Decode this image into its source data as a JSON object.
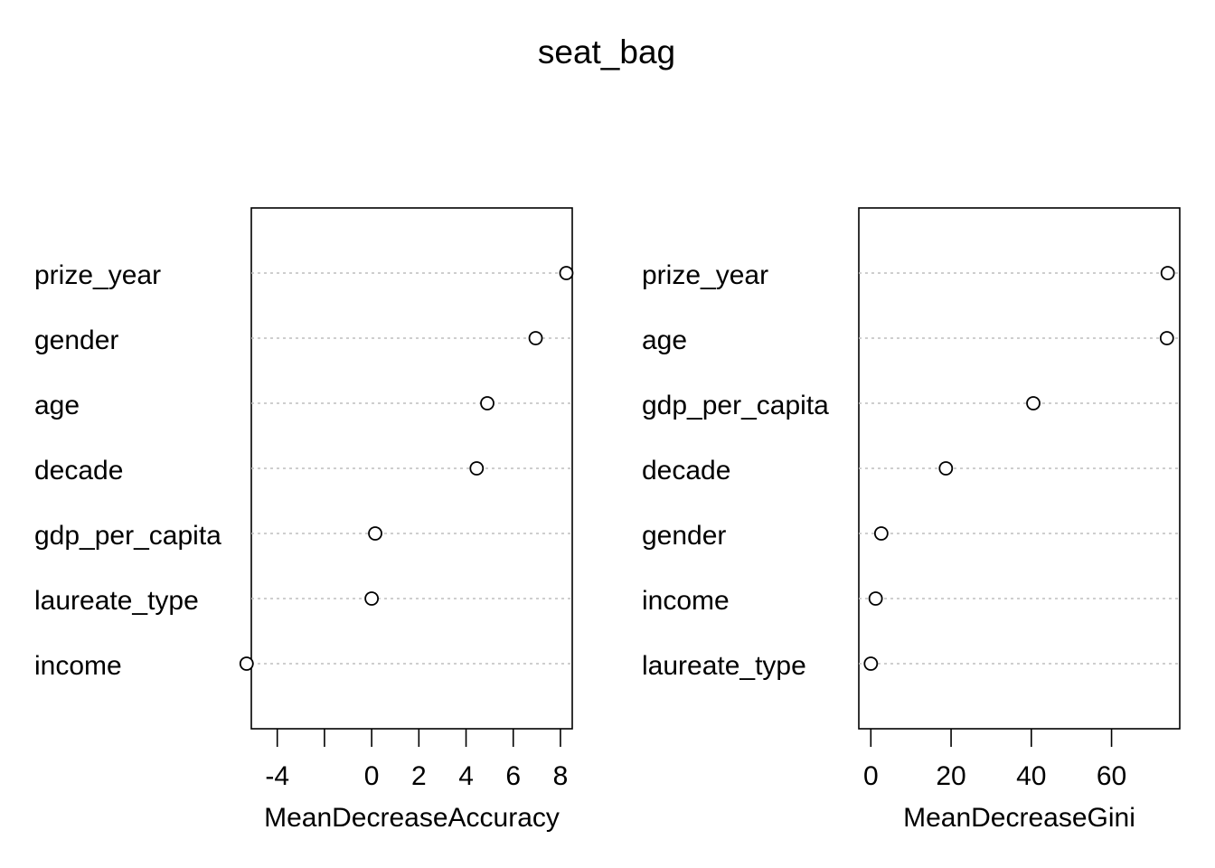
{
  "title": "seat_bag",
  "colors": {
    "frame": "#000000",
    "gridline": "#bebebe",
    "point_fill": "#ffffff",
    "point_stroke": "#000000"
  },
  "chart_data": [
    {
      "type": "scatter",
      "style": "dotchart",
      "xlabel": "MeanDecreaseAccuracy",
      "xlim": [
        -5.1,
        8.5
      ],
      "xticks": [
        -4,
        -2,
        0,
        2,
        4,
        6,
        8
      ],
      "xtick_labels": [
        "-4",
        "",
        "0",
        "2",
        "4",
        "6",
        "8"
      ],
      "grid": "horizontal-dotted",
      "categories": [
        "prize_year",
        "gender",
        "age",
        "decade",
        "gdp_per_capita",
        "laureate_type",
        "income"
      ],
      "values": [
        8.25,
        6.95,
        4.9,
        4.45,
        0.15,
        0.0,
        -5.3
      ]
    },
    {
      "type": "scatter",
      "style": "dotchart",
      "xlabel": "MeanDecreaseGini",
      "xlim": [
        -3.0,
        77.0
      ],
      "xticks": [
        0,
        20,
        40,
        60
      ],
      "xtick_labels": [
        "0",
        "20",
        "40",
        "60"
      ],
      "grid": "horizontal-dotted",
      "categories": [
        "prize_year",
        "age",
        "gdp_per_capita",
        "decade",
        "gender",
        "income",
        "laureate_type"
      ],
      "values": [
        74.0,
        73.8,
        40.5,
        18.7,
        2.6,
        1.2,
        0.0
      ]
    }
  ]
}
